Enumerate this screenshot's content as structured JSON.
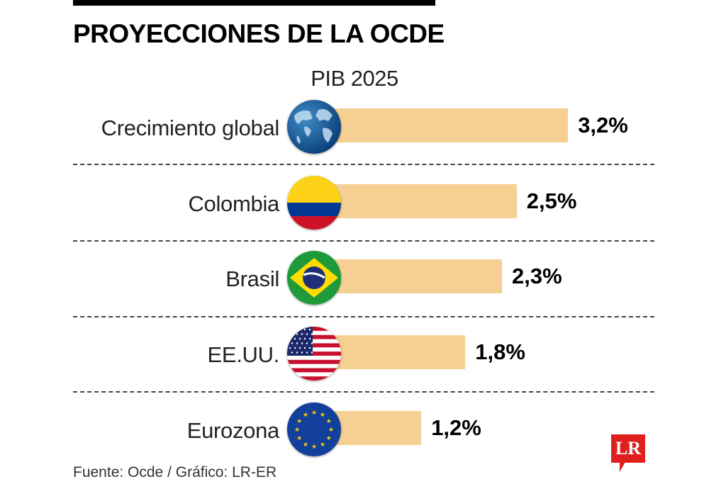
{
  "header": {
    "title": "PROYECCIONES DE LA OCDE",
    "subtitle": "PIB 2025"
  },
  "chart_data": {
    "type": "bar",
    "orientation": "horizontal",
    "title": "PROYECCIONES DE LA OCDE",
    "subtitle": "PIB 2025",
    "categories": [
      "Crecimiento global",
      "Colombia",
      "Brasil",
      "EE.UU.",
      "Eurozona"
    ],
    "values": [
      3.2,
      2.5,
      2.3,
      1.8,
      1.2
    ],
    "value_labels": [
      "3,2%",
      "2,5%",
      "2,3%",
      "1,8%",
      "1,2%"
    ],
    "icons": [
      "globe-icon",
      "colombia-flag-icon",
      "brazil-flag-icon",
      "usa-flag-icon",
      "eu-flag-icon"
    ],
    "bar_color": "#f5d092",
    "unit": "%",
    "xlabel": "",
    "ylabel": "",
    "xlim": [
      0,
      3.2
    ],
    "grid": false,
    "legend": "none"
  },
  "footer": {
    "source": "Fuente: Ocde / Gráfico: LR-ER",
    "logo": "LR"
  },
  "colors": {
    "bar": "#f5d092",
    "logo": "#e0201f"
  }
}
